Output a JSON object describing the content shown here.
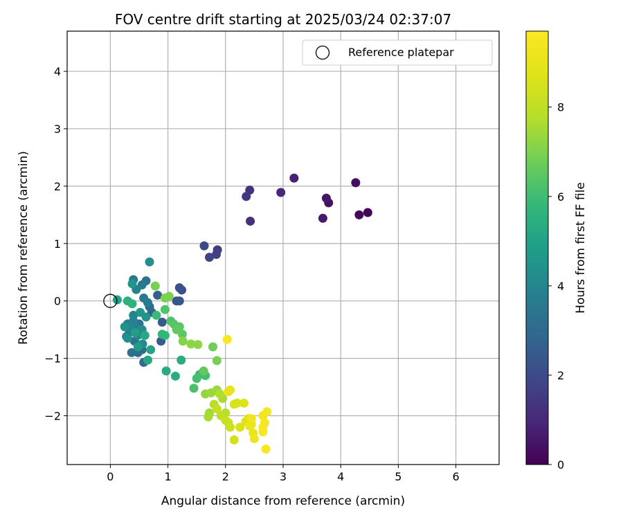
{
  "chart_data": {
    "type": "scatter",
    "title": "FOV centre drift starting at 2025/03/24 02:37:07",
    "xlabel": "Angular distance from reference (arcmin)",
    "ylabel": "Rotation from reference (arcmin)",
    "xlim": [
      -0.75,
      6.75
    ],
    "ylim": [
      -2.85,
      4.7
    ],
    "xticks": [
      "0",
      "1",
      "2",
      "3",
      "4",
      "5",
      "6"
    ],
    "yticks": [
      "−2",
      "−1",
      "0",
      "1",
      "2",
      "3",
      "4"
    ],
    "grid": true,
    "legend": {
      "position": "upper right",
      "label": "Reference platepar"
    },
    "reference_point": {
      "x": 0,
      "y": 0
    },
    "colorbar": {
      "label": "Hours from first FF file",
      "colormap": "viridis",
      "range": [
        0,
        9.7
      ],
      "ticks": [
        "0",
        "2",
        "4",
        "6",
        "8"
      ]
    },
    "points": [
      {
        "x": 4.47,
        "y": 1.54,
        "h": 0.1
      },
      {
        "x": 4.32,
        "y": 1.5,
        "h": 0.2
      },
      {
        "x": 4.26,
        "y": 2.06,
        "h": 0.3
      },
      {
        "x": 3.79,
        "y": 1.71,
        "h": 0.4
      },
      {
        "x": 3.75,
        "y": 1.79,
        "h": 0.5
      },
      {
        "x": 3.69,
        "y": 1.44,
        "h": 0.6
      },
      {
        "x": 3.19,
        "y": 2.14,
        "h": 0.8
      },
      {
        "x": 2.96,
        "y": 1.89,
        "h": 1.0
      },
      {
        "x": 2.43,
        "y": 1.39,
        "h": 1.2
      },
      {
        "x": 2.42,
        "y": 1.93,
        "h": 1.3
      },
      {
        "x": 2.36,
        "y": 1.82,
        "h": 1.4
      },
      {
        "x": 1.86,
        "y": 0.89,
        "h": 1.6
      },
      {
        "x": 1.84,
        "y": 0.81,
        "h": 1.7
      },
      {
        "x": 1.72,
        "y": 0.76,
        "h": 1.8
      },
      {
        "x": 1.63,
        "y": 0.96,
        "h": 1.9
      },
      {
        "x": 1.24,
        "y": 0.19,
        "h": 2.1
      },
      {
        "x": 1.2,
        "y": 0.23,
        "h": 2.2
      },
      {
        "x": 1.2,
        "y": 0.0,
        "h": 2.3
      },
      {
        "x": 1.15,
        "y": 0.0,
        "h": 2.4
      },
      {
        "x": 0.9,
        "y": -0.37,
        "h": 2.5
      },
      {
        "x": 0.88,
        "y": -0.7,
        "h": 2.5
      },
      {
        "x": 0.82,
        "y": 0.1,
        "h": 2.7
      },
      {
        "x": 0.72,
        "y": -0.2,
        "h": 2.8
      },
      {
        "x": 0.68,
        "y": -0.1,
        "h": 2.9
      },
      {
        "x": 0.58,
        "y": -1.07,
        "h": 3.0
      },
      {
        "x": 0.55,
        "y": -0.85,
        "h": 3.0
      },
      {
        "x": 0.48,
        "y": -0.9,
        "h": 3.1
      },
      {
        "x": 0.37,
        "y": -0.9,
        "h": 3.2
      },
      {
        "x": 0.42,
        "y": -0.7,
        "h": 3.2
      },
      {
        "x": 0.5,
        "y": -0.4,
        "h": 3.3
      },
      {
        "x": 0.62,
        "y": 0.35,
        "h": 3.3
      },
      {
        "x": 0.4,
        "y": 0.37,
        "h": 3.4
      },
      {
        "x": 0.55,
        "y": 0.28,
        "h": 3.5
      },
      {
        "x": 0.58,
        "y": 0.05,
        "h": 3.5
      },
      {
        "x": 0.65,
        "y": -0.03,
        "h": 3.6
      },
      {
        "x": 0.45,
        "y": -0.45,
        "h": 3.6
      },
      {
        "x": 0.3,
        "y": -0.4,
        "h": 3.7
      },
      {
        "x": 0.33,
        "y": -0.55,
        "h": 3.7
      },
      {
        "x": 0.28,
        "y": -0.62,
        "h": 3.8
      },
      {
        "x": 0.4,
        "y": -0.35,
        "h": 3.8
      },
      {
        "x": 0.45,
        "y": 0.2,
        "h": 3.9
      },
      {
        "x": 0.4,
        "y": -0.25,
        "h": 4.0
      },
      {
        "x": 0.35,
        "y": -0.48,
        "h": 4.0
      },
      {
        "x": 0.48,
        "y": -0.6,
        "h": 4.1
      },
      {
        "x": 0.56,
        "y": -0.75,
        "h": 4.2
      },
      {
        "x": 0.68,
        "y": 0.68,
        "h": 4.3
      },
      {
        "x": 0.55,
        "y": -0.5,
        "h": 4.3
      },
      {
        "x": 0.25,
        "y": -0.45,
        "h": 4.4
      },
      {
        "x": 0.3,
        "y": -0.65,
        "h": 4.4
      },
      {
        "x": 0.62,
        "y": -0.28,
        "h": 4.5
      },
      {
        "x": 0.38,
        "y": 0.3,
        "h": 4.6
      },
      {
        "x": 0.52,
        "y": -0.2,
        "h": 4.6
      },
      {
        "x": 0.48,
        "y": -0.8,
        "h": 4.8
      },
      {
        "x": 0.43,
        "y": -0.55,
        "h": 4.9
      },
      {
        "x": 0.12,
        "y": 0.02,
        "h": 5.0
      },
      {
        "x": 0.7,
        "y": -0.85,
        "h": 5.1
      },
      {
        "x": 0.65,
        "y": -1.03,
        "h": 5.2
      },
      {
        "x": 0.6,
        "y": -0.6,
        "h": 5.2
      },
      {
        "x": 0.97,
        "y": -1.22,
        "h": 5.3
      },
      {
        "x": 1.23,
        "y": -1.03,
        "h": 5.4
      },
      {
        "x": 1.13,
        "y": -1.31,
        "h": 5.4
      },
      {
        "x": 0.3,
        "y": 0.0,
        "h": 5.5
      },
      {
        "x": 0.38,
        "y": -0.05,
        "h": 5.6
      },
      {
        "x": 0.95,
        "y": -0.6,
        "h": 5.7
      },
      {
        "x": 0.9,
        "y": -0.58,
        "h": 5.8
      },
      {
        "x": 0.8,
        "y": -0.25,
        "h": 5.9
      },
      {
        "x": 1.55,
        "y": -1.28,
        "h": 6.0
      },
      {
        "x": 1.5,
        "y": -1.35,
        "h": 6.1
      },
      {
        "x": 1.65,
        "y": -1.3,
        "h": 6.1
      },
      {
        "x": 1.45,
        "y": -1.52,
        "h": 6.2
      },
      {
        "x": 1.05,
        "y": -0.35,
        "h": 6.3
      },
      {
        "x": 0.95,
        "y": -0.15,
        "h": 6.3
      },
      {
        "x": 1.1,
        "y": -0.4,
        "h": 6.4
      },
      {
        "x": 1.2,
        "y": -0.45,
        "h": 6.4
      },
      {
        "x": 1.25,
        "y": -0.58,
        "h": 6.5
      },
      {
        "x": 1.15,
        "y": -0.5,
        "h": 6.6
      },
      {
        "x": 1.62,
        "y": -1.22,
        "h": 6.6
      },
      {
        "x": 1.78,
        "y": -0.8,
        "h": 6.8
      },
      {
        "x": 1.85,
        "y": -1.04,
        "h": 6.9
      },
      {
        "x": 0.78,
        "y": 0.26,
        "h": 6.9
      },
      {
        "x": 0.95,
        "y": 0.05,
        "h": 7.0
      },
      {
        "x": 1.02,
        "y": 0.08,
        "h": 7.0
      },
      {
        "x": 1.26,
        "y": -0.7,
        "h": 7.1
      },
      {
        "x": 1.4,
        "y": -0.75,
        "h": 7.2
      },
      {
        "x": 1.52,
        "y": -0.76,
        "h": 7.2
      },
      {
        "x": 1.65,
        "y": -1.62,
        "h": 7.3
      },
      {
        "x": 1.75,
        "y": -1.6,
        "h": 7.4
      },
      {
        "x": 1.85,
        "y": -1.55,
        "h": 7.4
      },
      {
        "x": 1.72,
        "y": -1.95,
        "h": 7.5
      },
      {
        "x": 1.7,
        "y": -2.02,
        "h": 7.6
      },
      {
        "x": 1.95,
        "y": -1.7,
        "h": 7.6
      },
      {
        "x": 1.9,
        "y": -1.62,
        "h": 7.7
      },
      {
        "x": 1.8,
        "y": -1.8,
        "h": 7.8
      },
      {
        "x": 2.0,
        "y": -1.95,
        "h": 7.9
      },
      {
        "x": 1.92,
        "y": -2.0,
        "h": 8.0
      },
      {
        "x": 1.85,
        "y": -1.88,
        "h": 8.1
      },
      {
        "x": 2.0,
        "y": -2.08,
        "h": 8.2
      },
      {
        "x": 2.05,
        "y": -2.12,
        "h": 8.2
      },
      {
        "x": 2.08,
        "y": -2.2,
        "h": 8.3
      },
      {
        "x": 2.15,
        "y": -2.42,
        "h": 8.4
      },
      {
        "x": 2.2,
        "y": -1.78,
        "h": 8.5
      },
      {
        "x": 2.15,
        "y": -1.8,
        "h": 8.6
      },
      {
        "x": 2.25,
        "y": -2.2,
        "h": 8.6
      },
      {
        "x": 2.32,
        "y": -1.78,
        "h": 8.7
      },
      {
        "x": 2.4,
        "y": -2.05,
        "h": 8.8
      },
      {
        "x": 2.35,
        "y": -2.1,
        "h": 8.8
      },
      {
        "x": 2.08,
        "y": -1.55,
        "h": 8.9
      },
      {
        "x": 2.05,
        "y": -1.58,
        "h": 9.0
      },
      {
        "x": 2.45,
        "y": -2.15,
        "h": 9.1
      },
      {
        "x": 2.48,
        "y": -2.3,
        "h": 9.1
      },
      {
        "x": 2.5,
        "y": -2.4,
        "h": 9.2
      },
      {
        "x": 2.42,
        "y": -2.18,
        "h": 9.2
      },
      {
        "x": 2.45,
        "y": -2.05,
        "h": 9.3
      },
      {
        "x": 2.65,
        "y": -2.0,
        "h": 9.3
      },
      {
        "x": 2.68,
        "y": -2.12,
        "h": 9.4
      },
      {
        "x": 2.72,
        "y": -1.93,
        "h": 9.4
      },
      {
        "x": 2.65,
        "y": -2.2,
        "h": 9.5
      },
      {
        "x": 2.65,
        "y": -2.28,
        "h": 9.5
      },
      {
        "x": 2.7,
        "y": -2.58,
        "h": 9.6
      },
      {
        "x": 2.03,
        "y": -0.67,
        "h": 9.6
      }
    ]
  }
}
